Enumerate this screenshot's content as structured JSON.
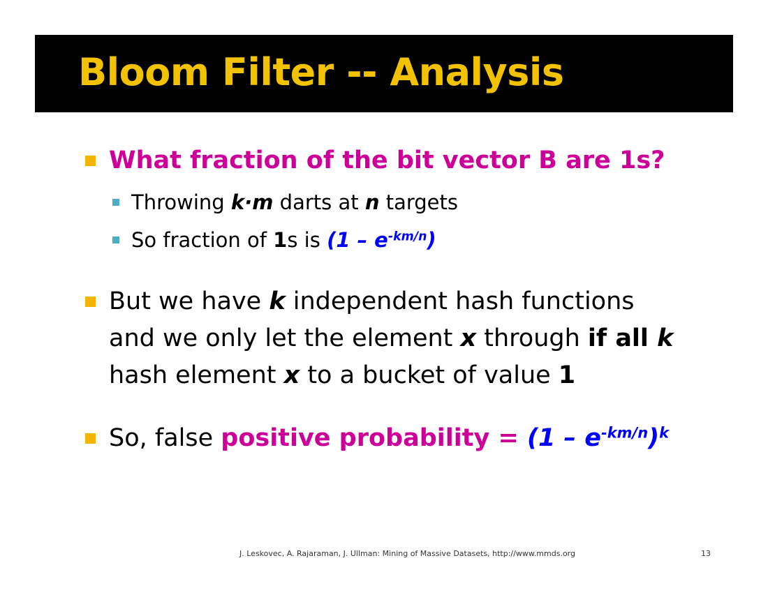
{
  "slide": {
    "title": "Bloom Filter -- Analysis",
    "accent_color": "#f2c200",
    "highlight_color": "#cc0099",
    "formula_color": "#0000ff"
  },
  "bullets": {
    "q1": {
      "text": "What fraction of the bit vector B are 1s?",
      "subs": {
        "s1": {
          "pre": "Throwing ",
          "var_km": "k·m",
          "mid": " darts at ",
          "var_n": "n",
          "post": " targets"
        },
        "s2": {
          "pre": "So fraction of ",
          "one": "1",
          "mid": "s is ",
          "formula_open": "(1 – e",
          "formula_exp": "-km/n",
          "formula_close": ")"
        }
      }
    },
    "q2": {
      "line1_pre": "But we have ",
      "line1_k": "k",
      "line1_post": " independent hash functions",
      "line2_pre": "and we only let the element ",
      "line2_x": "x",
      "line2_mid": " through ",
      "line2_ifall": "if all ",
      "line2_k": "k",
      "line3_pre": "hash element ",
      "line3_x": "x",
      "line3_mid": " to a bucket of value ",
      "line3_one": "1"
    },
    "q3": {
      "pre": "So, false ",
      "highlight": "positive probability",
      "eq": " = ",
      "formula_open": "(1 – e",
      "formula_exp": "-km/n",
      "formula_close": ")",
      "formula_power": "k"
    }
  },
  "footer": {
    "citation": "J. Leskovec, A. Rajaraman, J. Ullman: Mining of Massive Datasets, http://www.mmds.org",
    "page_number": "13"
  }
}
